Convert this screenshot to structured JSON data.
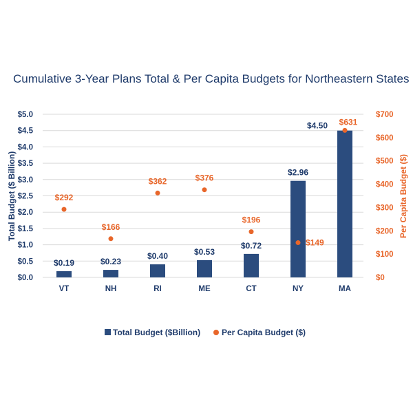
{
  "chart_data": {
    "type": "bar",
    "title": "Cumulative 3-Year Plans Total & Per Capita Budgets for Northeastern States",
    "categories": [
      "VT",
      "NH",
      "RI",
      "ME",
      "CT",
      "NY",
      "MA"
    ],
    "series": [
      {
        "name": "Total Budget ($Billion)",
        "type": "bar",
        "axis": "left",
        "color": "#2b4c7e",
        "values": [
          0.19,
          0.23,
          0.4,
          0.53,
          0.72,
          2.96,
          4.5
        ],
        "labels": [
          "$0.19",
          "$0.23",
          "$0.40",
          "$0.53",
          "$0.72",
          "$2.96",
          "$4.50"
        ]
      },
      {
        "name": "Per Capita Budget ($)",
        "type": "scatter",
        "axis": "right",
        "color": "#e8662a",
        "values": [
          292,
          166,
          362,
          376,
          196,
          149,
          631
        ],
        "labels": [
          "$292",
          "$166",
          "$362",
          "$376",
          "$196",
          "$149",
          "$631"
        ]
      }
    ],
    "ylabel": "Total Budget ($ Billion)",
    "ylabel_right": "Per Capita Budget ($)",
    "ylim": [
      0,
      5.0
    ],
    "ylim_right": [
      0,
      700
    ],
    "yticks": [
      "$0.0",
      "$0.5",
      "$1.0",
      "$1.5",
      "$2.0",
      "$2.5",
      "$3.0",
      "$3.5",
      "$4.0",
      "$4.5",
      "$5.0"
    ],
    "yticks_right": [
      "$0",
      "$100",
      "$200",
      "$300",
      "$400",
      "$500",
      "$600",
      "$700"
    ],
    "grid": true,
    "legend": "bottom"
  }
}
